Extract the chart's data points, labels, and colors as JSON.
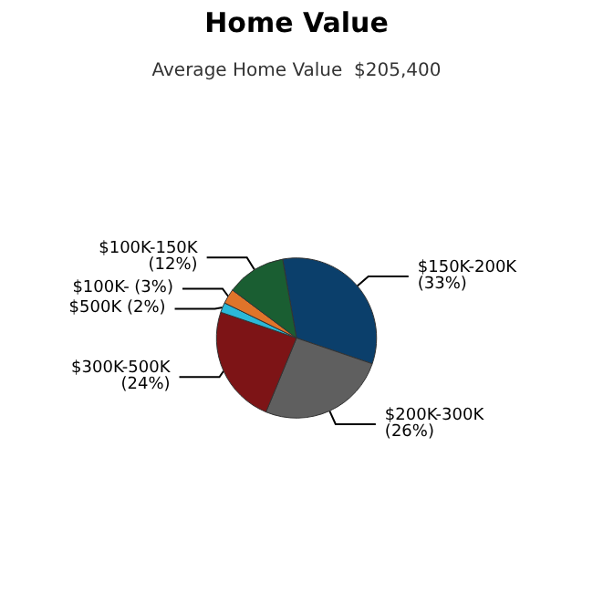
{
  "chart_data": {
    "type": "pie",
    "title": "Home Value",
    "subtitle": "Average Home Value  $205,400",
    "categories": [
      "$150K-200K",
      "$200K-300K",
      "$300K-500K",
      "$500K",
      "$100K-",
      "$100K-150K"
    ],
    "values": [
      33,
      26,
      24,
      2,
      3,
      12
    ],
    "colors": [
      "#0b3f6b",
      "#5f5f5f",
      "#7d1416",
      "#2bb8d8",
      "#e0742a",
      "#1a5e32"
    ],
    "value_labels": [
      "(33%)",
      "(26%)",
      "(24%)",
      "(2%)",
      "(3%)",
      "(12%)"
    ],
    "legend": false
  }
}
